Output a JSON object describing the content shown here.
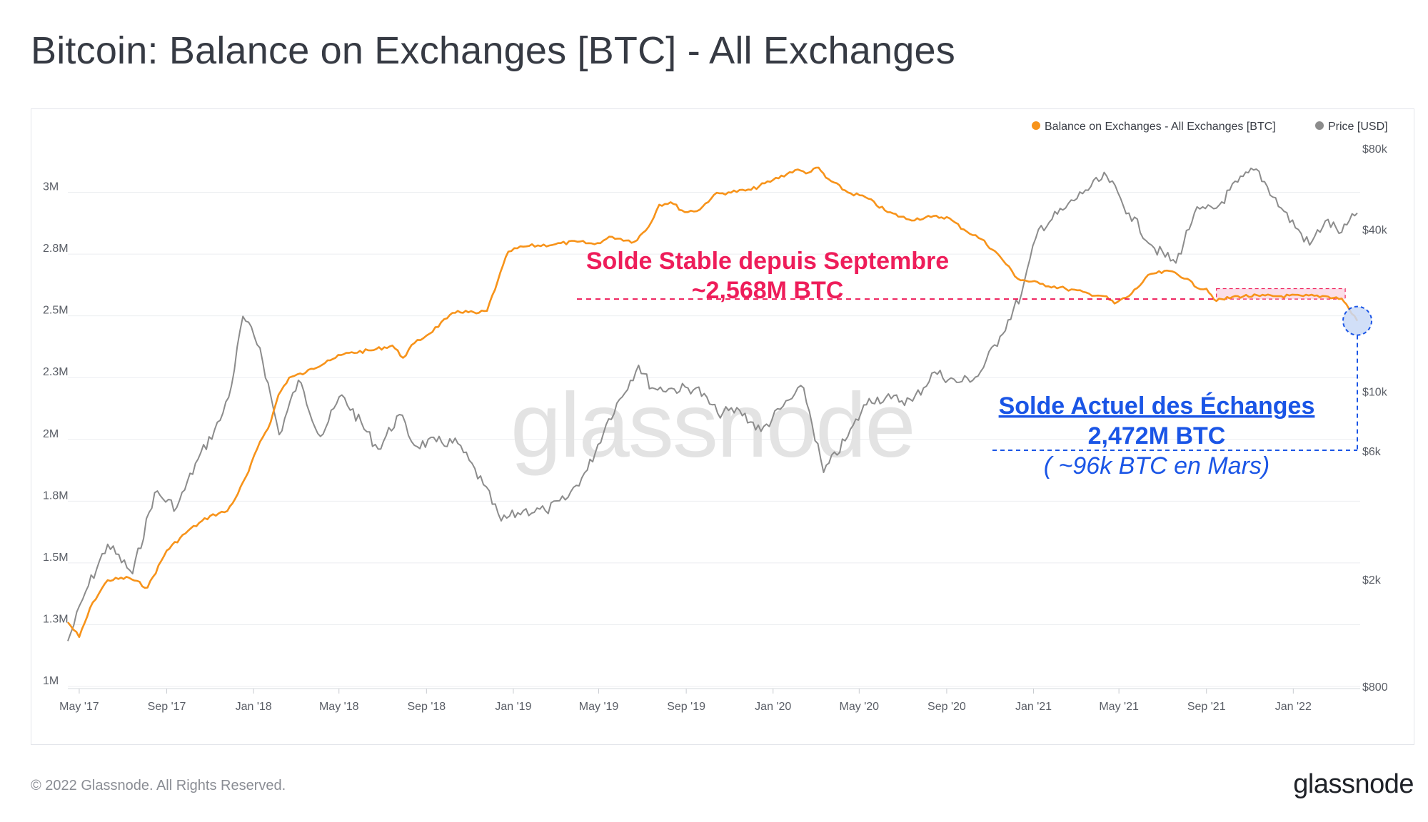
{
  "title": "Bitcoin: Balance on Exchanges [BTC] - All Exchanges",
  "footer": {
    "copyright": "© 2022 Glassnode. All Rights Reserved.",
    "logo": "glassnode"
  },
  "watermark": "glassnode",
  "colors": {
    "balance": "#f7931a",
    "price": "#8c8c8c",
    "annotation_red": "#ee1d5a",
    "annotation_blue": "#1a55e6"
  },
  "annotations": {
    "stable_line1": "Solde Stable depuis Septembre",
    "stable_line2": "~2,568M BTC",
    "current_line1": "Solde Actuel des Échanges",
    "current_line2": "2,472M BTC",
    "current_line3": "( ~96k BTC en Mars)"
  },
  "chart_data": {
    "type": "line",
    "title": "Bitcoin: Balance on Exchanges [BTC] - All Exchanges",
    "legend_position": "top-right",
    "grid": true,
    "x_ticks": [
      "May '17",
      "Sep '17",
      "Jan '18",
      "May '18",
      "Sep '18",
      "Jan '19",
      "May '19",
      "Sep '19",
      "Jan '20",
      "May '20",
      "Sep '20",
      "Jan '21",
      "May '21",
      "Sep '21",
      "Jan '22"
    ],
    "x_range": [
      "2017-04-15",
      "2022-04-05"
    ],
    "y_left": {
      "label": "",
      "ticks": [
        "1M",
        "1.3M",
        "1.5M",
        "1.8M",
        "2M",
        "2.3M",
        "2.5M",
        "2.8M",
        "3M"
      ],
      "tick_values": [
        1000000,
        1250000,
        1500000,
        1750000,
        2000000,
        2250000,
        2500000,
        2750000,
        3000000
      ],
      "range": [
        1000000,
        3250000
      ]
    },
    "y_right": {
      "label": "",
      "scale": "log",
      "ticks": [
        "$800",
        "$2k",
        "$6k",
        "$10k",
        "$40k",
        "$80k"
      ],
      "tick_values": [
        800,
        2000,
        6000,
        10000,
        40000,
        80000
      ]
    },
    "series": [
      {
        "name": "Balance on Exchanges - All Exchanges [BTC]",
        "axis": "left",
        "color": "#f7931a",
        "points": [
          [
            "2017-04-15",
            1260000
          ],
          [
            "2017-05-01",
            1200000
          ],
          [
            "2017-05-20",
            1340000
          ],
          [
            "2017-06-10",
            1430000
          ],
          [
            "2017-07-10",
            1440000
          ],
          [
            "2017-08-05",
            1400000
          ],
          [
            "2017-09-01",
            1550000
          ],
          [
            "2017-10-01",
            1630000
          ],
          [
            "2017-11-01",
            1690000
          ],
          [
            "2017-11-25",
            1710000
          ],
          [
            "2017-12-10",
            1780000
          ],
          [
            "2017-12-25",
            1870000
          ],
          [
            "2018-01-10",
            1990000
          ],
          [
            "2018-01-25",
            2070000
          ],
          [
            "2018-02-05",
            2180000
          ],
          [
            "2018-02-20",
            2250000
          ],
          [
            "2018-03-15",
            2270000
          ],
          [
            "2018-04-15",
            2320000
          ],
          [
            "2018-05-15",
            2350000
          ],
          [
            "2018-06-15",
            2360000
          ],
          [
            "2018-07-15",
            2380000
          ],
          [
            "2018-07-30",
            2330000
          ],
          [
            "2018-08-15",
            2390000
          ],
          [
            "2018-09-01",
            2420000
          ],
          [
            "2018-09-30",
            2490000
          ],
          [
            "2018-10-15",
            2520000
          ],
          [
            "2018-11-10",
            2510000
          ],
          [
            "2018-11-25",
            2520000
          ],
          [
            "2018-12-10",
            2640000
          ],
          [
            "2018-12-25",
            2760000
          ],
          [
            "2019-01-15",
            2780000
          ],
          [
            "2019-03-01",
            2790000
          ],
          [
            "2019-04-01",
            2800000
          ],
          [
            "2019-04-25",
            2790000
          ],
          [
            "2019-05-20",
            2820000
          ],
          [
            "2019-06-20",
            2800000
          ],
          [
            "2019-07-10",
            2860000
          ],
          [
            "2019-07-25",
            2950000
          ],
          [
            "2019-08-10",
            2960000
          ],
          [
            "2019-08-30",
            2920000
          ],
          [
            "2019-09-20",
            2930000
          ],
          [
            "2019-10-10",
            2990000
          ],
          [
            "2019-10-30",
            3000000
          ],
          [
            "2019-12-01",
            3010000
          ],
          [
            "2020-01-01",
            3050000
          ],
          [
            "2020-02-01",
            3090000
          ],
          [
            "2020-02-20",
            3080000
          ],
          [
            "2020-03-05",
            3100000
          ],
          [
            "2020-03-15",
            3060000
          ],
          [
            "2020-04-15",
            3000000
          ],
          [
            "2020-05-10",
            2980000
          ],
          [
            "2020-06-10",
            2920000
          ],
          [
            "2020-07-10",
            2890000
          ],
          [
            "2020-08-10",
            2900000
          ],
          [
            "2020-09-01",
            2900000
          ],
          [
            "2020-09-25",
            2850000
          ],
          [
            "2020-10-20",
            2810000
          ],
          [
            "2020-11-15",
            2740000
          ],
          [
            "2020-12-10",
            2650000
          ],
          [
            "2021-01-10",
            2630000
          ],
          [
            "2021-02-15",
            2610000
          ],
          [
            "2021-03-20",
            2590000
          ],
          [
            "2021-04-10",
            2580000
          ],
          [
            "2021-04-25",
            2550000
          ],
          [
            "2021-05-15",
            2580000
          ],
          [
            "2021-06-15",
            2670000
          ],
          [
            "2021-07-15",
            2680000
          ],
          [
            "2021-08-05",
            2650000
          ],
          [
            "2021-08-15",
            2620000
          ],
          [
            "2021-09-01",
            2610000
          ],
          [
            "2021-09-15",
            2560000
          ],
          [
            "2021-10-15",
            2580000
          ],
          [
            "2021-11-15",
            2580000
          ],
          [
            "2021-12-15",
            2580000
          ],
          [
            "2022-01-15",
            2580000
          ],
          [
            "2022-02-15",
            2580000
          ],
          [
            "2022-03-10",
            2570000
          ],
          [
            "2022-03-20",
            2530000
          ],
          [
            "2022-04-01",
            2480000
          ]
        ]
      },
      {
        "name": "Price [USD]",
        "axis": "right",
        "color": "#8c8c8c",
        "points": [
          [
            "2017-04-15",
            1180
          ],
          [
            "2017-05-10",
            1800
          ],
          [
            "2017-06-10",
            2700
          ],
          [
            "2017-07-15",
            2100
          ],
          [
            "2017-08-15",
            4200
          ],
          [
            "2017-09-15",
            3700
          ],
          [
            "2017-10-15",
            5600
          ],
          [
            "2017-11-15",
            7800
          ],
          [
            "2017-12-01",
            10500
          ],
          [
            "2017-12-17",
            19000
          ],
          [
            "2018-01-10",
            14500
          ],
          [
            "2018-02-06",
            6900
          ],
          [
            "2018-03-05",
            11000
          ],
          [
            "2018-04-05",
            6800
          ],
          [
            "2018-05-05",
            9700
          ],
          [
            "2018-06-25",
            6100
          ],
          [
            "2018-07-25",
            8200
          ],
          [
            "2018-08-15",
            6300
          ],
          [
            "2018-09-15",
            6500
          ],
          [
            "2018-10-15",
            6400
          ],
          [
            "2018-11-20",
            4500
          ],
          [
            "2018-12-15",
            3300
          ],
          [
            "2019-01-15",
            3600
          ],
          [
            "2019-02-15",
            3600
          ],
          [
            "2019-03-15",
            3950
          ],
          [
            "2019-04-15",
            5100
          ],
          [
            "2019-05-15",
            7900
          ],
          [
            "2019-06-26",
            12500
          ],
          [
            "2019-07-15",
            10300
          ],
          [
            "2019-08-15",
            10200
          ],
          [
            "2019-09-15",
            10300
          ],
          [
            "2019-10-15",
            8300
          ],
          [
            "2019-11-15",
            8500
          ],
          [
            "2019-12-15",
            7100
          ],
          [
            "2020-01-15",
            8800
          ],
          [
            "2020-02-13",
            10300
          ],
          [
            "2020-03-12",
            5000
          ],
          [
            "2020-04-15",
            6800
          ],
          [
            "2020-05-15",
            9400
          ],
          [
            "2020-06-15",
            9400
          ],
          [
            "2020-07-15",
            9200
          ],
          [
            "2020-08-15",
            11800
          ],
          [
            "2020-09-15",
            10800
          ],
          [
            "2020-10-15",
            11400
          ],
          [
            "2020-11-15",
            16000
          ],
          [
            "2020-12-15",
            23000
          ],
          [
            "2021-01-08",
            40000
          ],
          [
            "2021-02-15",
            48000
          ],
          [
            "2021-03-15",
            56000
          ],
          [
            "2021-04-14",
            63000
          ],
          [
            "2021-05-15",
            46000
          ],
          [
            "2021-06-20",
            34000
          ],
          [
            "2021-07-20",
            30000
          ],
          [
            "2021-08-15",
            46000
          ],
          [
            "2021-09-15",
            48000
          ],
          [
            "2021-10-15",
            60000
          ],
          [
            "2021-11-10",
            67000
          ],
          [
            "2021-12-15",
            48000
          ],
          [
            "2022-01-24",
            35000
          ],
          [
            "2022-02-15",
            43000
          ],
          [
            "2022-03-10",
            39000
          ],
          [
            "2022-04-01",
            46000
          ]
        ]
      }
    ]
  },
  "legend": {
    "balance_label": "Balance on Exchanges - All Exchanges [BTC]",
    "price_label": "Price [USD]"
  }
}
